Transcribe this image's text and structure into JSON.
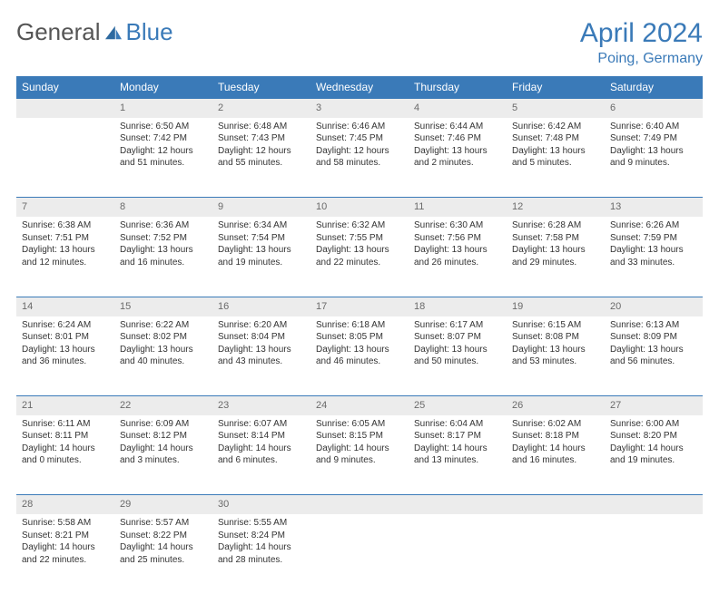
{
  "brand": {
    "part1": "General",
    "part2": "Blue"
  },
  "title": "April 2024",
  "location": "Poing, Germany",
  "colors": {
    "accent": "#3a7ab8",
    "header_text": "#ffffff",
    "daynum_bg": "#ececec",
    "text": "#333333"
  },
  "weekdays": [
    "Sunday",
    "Monday",
    "Tuesday",
    "Wednesday",
    "Thursday",
    "Friday",
    "Saturday"
  ],
  "weeks": [
    {
      "days": [
        {
          "num": "",
          "sunrise": "",
          "sunset": "",
          "daylight": ""
        },
        {
          "num": "1",
          "sunrise": "Sunrise: 6:50 AM",
          "sunset": "Sunset: 7:42 PM",
          "daylight": "Daylight: 12 hours and 51 minutes."
        },
        {
          "num": "2",
          "sunrise": "Sunrise: 6:48 AM",
          "sunset": "Sunset: 7:43 PM",
          "daylight": "Daylight: 12 hours and 55 minutes."
        },
        {
          "num": "3",
          "sunrise": "Sunrise: 6:46 AM",
          "sunset": "Sunset: 7:45 PM",
          "daylight": "Daylight: 12 hours and 58 minutes."
        },
        {
          "num": "4",
          "sunrise": "Sunrise: 6:44 AM",
          "sunset": "Sunset: 7:46 PM",
          "daylight": "Daylight: 13 hours and 2 minutes."
        },
        {
          "num": "5",
          "sunrise": "Sunrise: 6:42 AM",
          "sunset": "Sunset: 7:48 PM",
          "daylight": "Daylight: 13 hours and 5 minutes."
        },
        {
          "num": "6",
          "sunrise": "Sunrise: 6:40 AM",
          "sunset": "Sunset: 7:49 PM",
          "daylight": "Daylight: 13 hours and 9 minutes."
        }
      ]
    },
    {
      "days": [
        {
          "num": "7",
          "sunrise": "Sunrise: 6:38 AM",
          "sunset": "Sunset: 7:51 PM",
          "daylight": "Daylight: 13 hours and 12 minutes."
        },
        {
          "num": "8",
          "sunrise": "Sunrise: 6:36 AM",
          "sunset": "Sunset: 7:52 PM",
          "daylight": "Daylight: 13 hours and 16 minutes."
        },
        {
          "num": "9",
          "sunrise": "Sunrise: 6:34 AM",
          "sunset": "Sunset: 7:54 PM",
          "daylight": "Daylight: 13 hours and 19 minutes."
        },
        {
          "num": "10",
          "sunrise": "Sunrise: 6:32 AM",
          "sunset": "Sunset: 7:55 PM",
          "daylight": "Daylight: 13 hours and 22 minutes."
        },
        {
          "num": "11",
          "sunrise": "Sunrise: 6:30 AM",
          "sunset": "Sunset: 7:56 PM",
          "daylight": "Daylight: 13 hours and 26 minutes."
        },
        {
          "num": "12",
          "sunrise": "Sunrise: 6:28 AM",
          "sunset": "Sunset: 7:58 PM",
          "daylight": "Daylight: 13 hours and 29 minutes."
        },
        {
          "num": "13",
          "sunrise": "Sunrise: 6:26 AM",
          "sunset": "Sunset: 7:59 PM",
          "daylight": "Daylight: 13 hours and 33 minutes."
        }
      ]
    },
    {
      "days": [
        {
          "num": "14",
          "sunrise": "Sunrise: 6:24 AM",
          "sunset": "Sunset: 8:01 PM",
          "daylight": "Daylight: 13 hours and 36 minutes."
        },
        {
          "num": "15",
          "sunrise": "Sunrise: 6:22 AM",
          "sunset": "Sunset: 8:02 PM",
          "daylight": "Daylight: 13 hours and 40 minutes."
        },
        {
          "num": "16",
          "sunrise": "Sunrise: 6:20 AM",
          "sunset": "Sunset: 8:04 PM",
          "daylight": "Daylight: 13 hours and 43 minutes."
        },
        {
          "num": "17",
          "sunrise": "Sunrise: 6:18 AM",
          "sunset": "Sunset: 8:05 PM",
          "daylight": "Daylight: 13 hours and 46 minutes."
        },
        {
          "num": "18",
          "sunrise": "Sunrise: 6:17 AM",
          "sunset": "Sunset: 8:07 PM",
          "daylight": "Daylight: 13 hours and 50 minutes."
        },
        {
          "num": "19",
          "sunrise": "Sunrise: 6:15 AM",
          "sunset": "Sunset: 8:08 PM",
          "daylight": "Daylight: 13 hours and 53 minutes."
        },
        {
          "num": "20",
          "sunrise": "Sunrise: 6:13 AM",
          "sunset": "Sunset: 8:09 PM",
          "daylight": "Daylight: 13 hours and 56 minutes."
        }
      ]
    },
    {
      "days": [
        {
          "num": "21",
          "sunrise": "Sunrise: 6:11 AM",
          "sunset": "Sunset: 8:11 PM",
          "daylight": "Daylight: 14 hours and 0 minutes."
        },
        {
          "num": "22",
          "sunrise": "Sunrise: 6:09 AM",
          "sunset": "Sunset: 8:12 PM",
          "daylight": "Daylight: 14 hours and 3 minutes."
        },
        {
          "num": "23",
          "sunrise": "Sunrise: 6:07 AM",
          "sunset": "Sunset: 8:14 PM",
          "daylight": "Daylight: 14 hours and 6 minutes."
        },
        {
          "num": "24",
          "sunrise": "Sunrise: 6:05 AM",
          "sunset": "Sunset: 8:15 PM",
          "daylight": "Daylight: 14 hours and 9 minutes."
        },
        {
          "num": "25",
          "sunrise": "Sunrise: 6:04 AM",
          "sunset": "Sunset: 8:17 PM",
          "daylight": "Daylight: 14 hours and 13 minutes."
        },
        {
          "num": "26",
          "sunrise": "Sunrise: 6:02 AM",
          "sunset": "Sunset: 8:18 PM",
          "daylight": "Daylight: 14 hours and 16 minutes."
        },
        {
          "num": "27",
          "sunrise": "Sunrise: 6:00 AM",
          "sunset": "Sunset: 8:20 PM",
          "daylight": "Daylight: 14 hours and 19 minutes."
        }
      ]
    },
    {
      "days": [
        {
          "num": "28",
          "sunrise": "Sunrise: 5:58 AM",
          "sunset": "Sunset: 8:21 PM",
          "daylight": "Daylight: 14 hours and 22 minutes."
        },
        {
          "num": "29",
          "sunrise": "Sunrise: 5:57 AM",
          "sunset": "Sunset: 8:22 PM",
          "daylight": "Daylight: 14 hours and 25 minutes."
        },
        {
          "num": "30",
          "sunrise": "Sunrise: 5:55 AM",
          "sunset": "Sunset: 8:24 PM",
          "daylight": "Daylight: 14 hours and 28 minutes."
        },
        {
          "num": "",
          "sunrise": "",
          "sunset": "",
          "daylight": ""
        },
        {
          "num": "",
          "sunrise": "",
          "sunset": "",
          "daylight": ""
        },
        {
          "num": "",
          "sunrise": "",
          "sunset": "",
          "daylight": ""
        },
        {
          "num": "",
          "sunrise": "",
          "sunset": "",
          "daylight": ""
        }
      ]
    }
  ]
}
